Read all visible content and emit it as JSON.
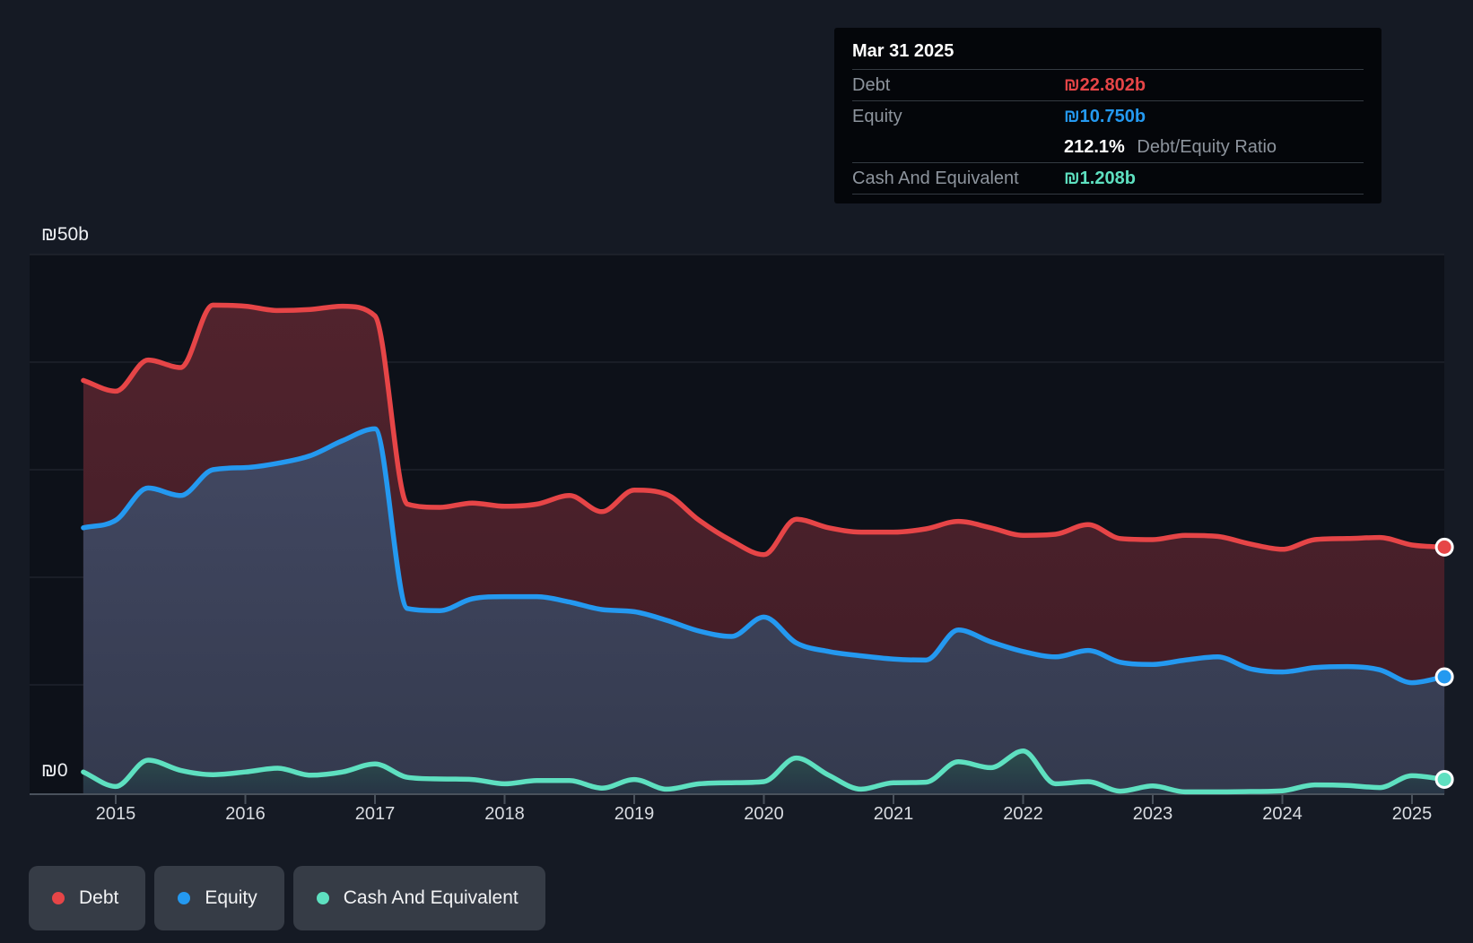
{
  "y_axis": {
    "top_label": "₪50b",
    "zero_label": "₪0",
    "min": 0,
    "max": 50
  },
  "x_axis": {
    "ticks": [
      "2015",
      "2016",
      "2017",
      "2018",
      "2019",
      "2020",
      "2021",
      "2022",
      "2023",
      "2024",
      "2025"
    ]
  },
  "tooltip": {
    "date": "Mar 31 2025",
    "debt_label": "Debt",
    "debt_value": "₪22.802b",
    "equity_label": "Equity",
    "equity_value": "₪10.750b",
    "ratio_value": "212.1%",
    "ratio_label": "Debt/Equity Ratio",
    "cash_label": "Cash And Equivalent",
    "cash_value": "₪1.208b"
  },
  "legend": {
    "items": [
      {
        "label": "Debt"
      },
      {
        "label": "Equity"
      },
      {
        "label": "Cash And Equivalent"
      }
    ]
  },
  "chart_data": {
    "type": "area",
    "title": "",
    "y_unit": "₪b",
    "ylim": [
      0,
      50
    ],
    "grid_lines": [
      10,
      20,
      30,
      40,
      50
    ],
    "legend_position": "bottom-left",
    "end_markers": true,
    "x": [
      2014.75,
      2015.0,
      2015.25,
      2015.5,
      2015.75,
      2016.0,
      2016.25,
      2016.5,
      2016.75,
      2017.0,
      2017.25,
      2017.5,
      2017.75,
      2018.0,
      2018.25,
      2018.5,
      2018.75,
      2019.0,
      2019.25,
      2019.5,
      2019.75,
      2020.0,
      2020.25,
      2020.5,
      2020.75,
      2021.0,
      2021.25,
      2021.5,
      2021.75,
      2022.0,
      2022.25,
      2022.5,
      2022.75,
      2023.0,
      2023.25,
      2023.5,
      2023.75,
      2024.0,
      2024.25,
      2024.5,
      2024.75,
      2025.0,
      2025.25
    ],
    "series": [
      {
        "name": "Debt",
        "color": "#e64547",
        "fill_top": "#51232d",
        "fill_bottom": "#3f1c26",
        "values": [
          38.3,
          37.3,
          40.2,
          39.5,
          45.3,
          45.2,
          44.8,
          44.9,
          45.2,
          44.3,
          26.8,
          26.5,
          26.9,
          26.6,
          26.8,
          27.6,
          26.1,
          28.1,
          27.7,
          25.3,
          23.4,
          22.1,
          25.4,
          24.6,
          24.2,
          24.2,
          24.5,
          25.2,
          24.6,
          23.9,
          24.0,
          24.9,
          23.6,
          23.5,
          23.9,
          23.8,
          23.1,
          22.6,
          23.5,
          23.6,
          23.7,
          23.0,
          22.802
        ]
      },
      {
        "name": "Equity",
        "color": "#2499f0",
        "fill_top": "#424862",
        "fill_bottom": "#343a4e",
        "values": [
          24.6,
          25.3,
          28.3,
          27.6,
          30.0,
          30.2,
          30.6,
          31.3,
          32.7,
          33.8,
          17.1,
          16.9,
          18.0,
          18.2,
          18.2,
          17.7,
          17.0,
          16.8,
          16.0,
          15.0,
          14.5,
          16.3,
          13.9,
          13.1,
          12.7,
          12.4,
          12.3,
          15.1,
          14.0,
          13.1,
          12.6,
          13.2,
          12.1,
          11.9,
          12.3,
          12.6,
          11.5,
          11.2,
          11.6,
          11.7,
          11.4,
          10.2,
          10.75
        ]
      },
      {
        "name": "Cash And Equivalent",
        "color": "#5ee0c0",
        "fill_top": "#2c4f4d",
        "fill_bottom": "#273445",
        "values": [
          1.9,
          0.55,
          3.0,
          2.05,
          1.65,
          1.9,
          2.25,
          1.6,
          1.9,
          2.65,
          1.4,
          1.25,
          1.2,
          0.8,
          1.1,
          1.1,
          0.4,
          1.2,
          0.3,
          0.8,
          0.9,
          1.0,
          3.2,
          1.6,
          0.3,
          0.9,
          0.95,
          2.85,
          2.3,
          3.85,
          0.8,
          1.0,
          0.12,
          0.6,
          0.05,
          0.05,
          0.08,
          0.15,
          0.7,
          0.65,
          0.45,
          1.55,
          1.208
        ]
      }
    ]
  }
}
